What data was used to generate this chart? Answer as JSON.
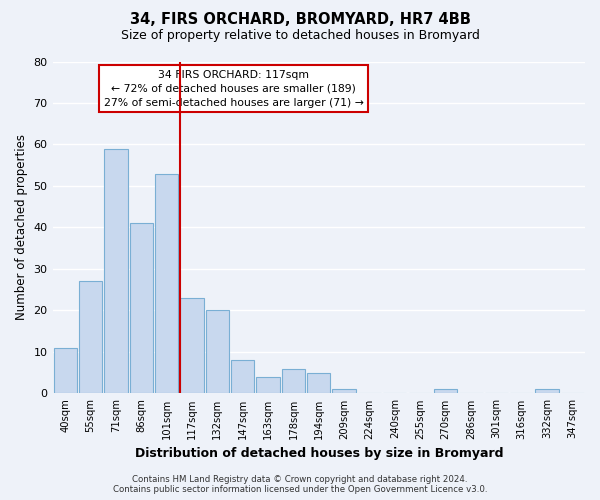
{
  "title": "34, FIRS ORCHARD, BROMYARD, HR7 4BB",
  "subtitle": "Size of property relative to detached houses in Bromyard",
  "xlabel": "Distribution of detached houses by size in Bromyard",
  "ylabel": "Number of detached properties",
  "bar_labels": [
    "40sqm",
    "55sqm",
    "71sqm",
    "86sqm",
    "101sqm",
    "117sqm",
    "132sqm",
    "147sqm",
    "163sqm",
    "178sqm",
    "194sqm",
    "209sqm",
    "224sqm",
    "240sqm",
    "255sqm",
    "270sqm",
    "286sqm",
    "301sqm",
    "316sqm",
    "332sqm",
    "347sqm"
  ],
  "bar_values": [
    11,
    27,
    59,
    41,
    53,
    23,
    20,
    8,
    4,
    6,
    5,
    1,
    0,
    0,
    0,
    1,
    0,
    0,
    0,
    1,
    0
  ],
  "bar_color": "#c8d8ee",
  "bar_edge_color": "#7aafd4",
  "highlight_index": 5,
  "highlight_line_color": "#cc0000",
  "ylim": [
    0,
    80
  ],
  "yticks": [
    0,
    10,
    20,
    30,
    40,
    50,
    60,
    70,
    80
  ],
  "annotation_title": "34 FIRS ORCHARD: 117sqm",
  "annotation_line1": "← 72% of detached houses are smaller (189)",
  "annotation_line2": "27% of semi-detached houses are larger (71) →",
  "annotation_box_color": "#ffffff",
  "annotation_box_edge": "#cc0000",
  "footer_line1": "Contains HM Land Registry data © Crown copyright and database right 2024.",
  "footer_line2": "Contains public sector information licensed under the Open Government Licence v3.0.",
  "background_color": "#eef2f9",
  "grid_color": "#ffffff"
}
